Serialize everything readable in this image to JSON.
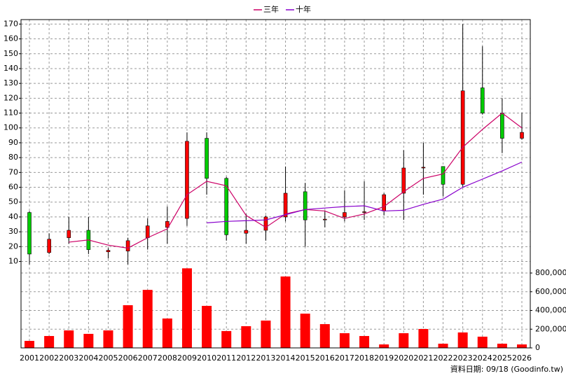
{
  "chart_data": [
    {
      "type": "candlestick",
      "legend": "top",
      "up_color": "#ff0000",
      "down_color": "#00cc00",
      "flat_color": "#000000",
      "open": [
        43,
        16,
        26,
        31,
        16.5,
        17,
        26,
        33,
        39,
        93,
        66,
        29,
        31,
        40,
        57,
        38,
        40,
        43,
        44,
        56,
        73,
        74,
        62,
        127,
        110,
        93
      ],
      "high": [
        44,
        29,
        40,
        40,
        19,
        26,
        39,
        47,
        97,
        97,
        67,
        42,
        41,
        74,
        63,
        44,
        58,
        64,
        56,
        85,
        90,
        74,
        170,
        155,
        120,
        110
      ],
      "low": [
        8,
        15,
        22,
        15,
        12,
        8,
        18,
        22,
        34,
        55,
        24,
        22,
        24,
        37,
        20,
        33,
        37,
        38,
        41,
        38,
        55,
        54,
        60,
        109,
        83,
        92
      ],
      "close": [
        15,
        25,
        31,
        18,
        17.5,
        24,
        34,
        37,
        91,
        66,
        28,
        31,
        40,
        56,
        38,
        38.5,
        43,
        43.5,
        55,
        73,
        73.5,
        62,
        125,
        110,
        93,
        97
      ],
      "series": [
        {
          "name": "三年",
          "color": "#cc0066",
          "values": [
            null,
            null,
            23,
            24.5,
            21,
            19,
            26,
            32,
            55,
            64,
            61,
            41,
            33,
            42,
            45,
            44,
            39,
            42,
            47,
            57,
            66,
            69,
            87,
            99,
            110,
            100
          ]
        },
        {
          "name": "十年",
          "color": "#8800cc",
          "values": [
            null,
            null,
            null,
            null,
            null,
            null,
            null,
            null,
            null,
            36,
            37,
            37.5,
            38,
            41.5,
            45,
            46,
            47,
            47.5,
            44,
            44.5,
            48.5,
            52,
            60,
            65.5,
            71,
            77
          ]
        }
      ],
      "ylim": [
        6,
        173
      ],
      "yticks": [
        10,
        20,
        30,
        40,
        50,
        60,
        70,
        80,
        90,
        100,
        110,
        120,
        130,
        140,
        150,
        160,
        170
      ],
      "grid": true
    },
    {
      "type": "bar",
      "color": "#ff0000",
      "categories": [
        "2001",
        "2002",
        "2003",
        "2004",
        "2005",
        "2006",
        "2007",
        "2008",
        "2009",
        "2010",
        "2011",
        "2012",
        "2013",
        "2014",
        "2015",
        "2016",
        "2017",
        "2018",
        "2019",
        "2020",
        "2021",
        "2022",
        "2023",
        "2024",
        "2025",
        "2026"
      ],
      "values": [
        75000,
        127000,
        187000,
        150000,
        187000,
        456000,
        620000,
        314000,
        850000,
        449000,
        180000,
        232000,
        292000,
        763000,
        366000,
        254000,
        157000,
        127000,
        37000,
        157000,
        202000,
        45000,
        165000,
        120000,
        45000,
        37000
      ],
      "ylim": [
        0,
        860000
      ],
      "yticks": [
        0,
        {
          "value": 200000,
          "label": "200,000"
        },
        {
          "value": 400000,
          "label": "400,000"
        },
        {
          "value": 600000,
          "label": "600,000"
        },
        {
          "value": 800000,
          "label": "800,000"
        }
      ],
      "grid": true
    }
  ],
  "source": "資料日期: 09/18  (Goodinfo.tw)"
}
